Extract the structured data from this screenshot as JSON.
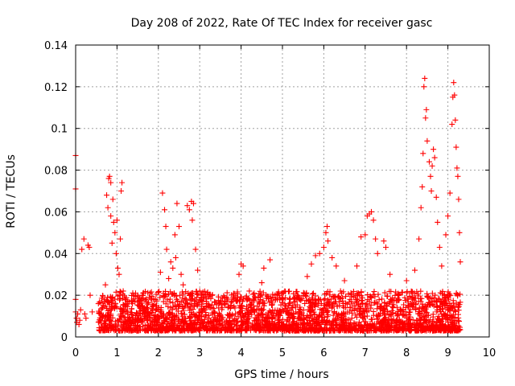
{
  "chart_data": {
    "type": "scatter",
    "title": "Day 208 of 2022, Rate Of TEC Index for receiver gasc",
    "xlabel": "GPS time / hours",
    "ylabel": "ROTI / TECUs",
    "xlim": [
      0,
      10
    ],
    "ylim": [
      0,
      0.14
    ],
    "x_ticks": [
      0,
      1,
      2,
      3,
      4,
      5,
      6,
      7,
      8,
      9,
      10
    ],
    "x_tick_labels": [
      "0",
      "1",
      "2",
      "3",
      "4",
      "5",
      "6",
      "7",
      "8",
      "9",
      "10"
    ],
    "y_ticks": [
      0,
      0.02,
      0.04,
      0.06,
      0.08,
      0.1,
      0.12,
      0.14
    ],
    "y_tick_labels": [
      "0",
      "0.02",
      "0.04",
      "0.06",
      "0.08",
      "0.1",
      "0.12",
      "0.14"
    ],
    "grid": true,
    "marker": "+",
    "series": [
      {
        "name": "ROTI",
        "color": "#ff0000",
        "points": [
          [
            0.0,
            0.087
          ],
          [
            0.0,
            0.071
          ],
          [
            0.0,
            0.018
          ],
          [
            0.0,
            0.012
          ],
          [
            0.02,
            0.009
          ],
          [
            0.03,
            0.007
          ],
          [
            0.05,
            0.011
          ],
          [
            0.08,
            0.006
          ],
          [
            0.1,
            0.008
          ],
          [
            0.12,
            0.013
          ],
          [
            0.15,
            0.042
          ],
          [
            0.2,
            0.047
          ],
          [
            0.22,
            0.011
          ],
          [
            0.25,
            0.009
          ],
          [
            0.3,
            0.044
          ],
          [
            0.33,
            0.043
          ],
          [
            0.35,
            0.02
          ],
          [
            0.4,
            0.012
          ],
          [
            0.55,
            0.016
          ],
          [
            0.6,
            0.011
          ],
          [
            0.65,
            0.014
          ],
          [
            0.7,
            0.018
          ],
          [
            0.72,
            0.025
          ],
          [
            0.75,
            0.068
          ],
          [
            0.78,
            0.062
          ],
          [
            0.8,
            0.076
          ],
          [
            0.82,
            0.077
          ],
          [
            0.85,
            0.074
          ],
          [
            0.85,
            0.058
          ],
          [
            0.88,
            0.045
          ],
          [
            0.9,
            0.066
          ],
          [
            0.92,
            0.055
          ],
          [
            0.95,
            0.05
          ],
          [
            0.98,
            0.04
          ],
          [
            1.0,
            0.056
          ],
          [
            1.02,
            0.033
          ],
          [
            1.05,
            0.03
          ],
          [
            1.08,
            0.047
          ],
          [
            1.1,
            0.07
          ],
          [
            1.12,
            0.074
          ],
          [
            1.15,
            0.022
          ],
          [
            1.2,
            0.018
          ],
          [
            1.5,
            0.02
          ],
          [
            1.8,
            0.021
          ],
          [
            2.05,
            0.031
          ],
          [
            2.1,
            0.069
          ],
          [
            2.15,
            0.061
          ],
          [
            2.18,
            0.053
          ],
          [
            2.2,
            0.042
          ],
          [
            2.25,
            0.028
          ],
          [
            2.3,
            0.036
          ],
          [
            2.35,
            0.033
          ],
          [
            2.4,
            0.049
          ],
          [
            2.42,
            0.038
          ],
          [
            2.45,
            0.064
          ],
          [
            2.5,
            0.053
          ],
          [
            2.55,
            0.03
          ],
          [
            2.6,
            0.025
          ],
          [
            2.7,
            0.063
          ],
          [
            2.75,
            0.061
          ],
          [
            2.8,
            0.065
          ],
          [
            2.85,
            0.064
          ],
          [
            2.82,
            0.056
          ],
          [
            2.9,
            0.042
          ],
          [
            2.95,
            0.032
          ],
          [
            3.0,
            0.022
          ],
          [
            3.3,
            0.02
          ],
          [
            3.6,
            0.019
          ],
          [
            3.95,
            0.03
          ],
          [
            4.0,
            0.035
          ],
          [
            4.05,
            0.034
          ],
          [
            4.2,
            0.022
          ],
          [
            4.5,
            0.026
          ],
          [
            4.55,
            0.033
          ],
          [
            4.7,
            0.037
          ],
          [
            5.0,
            0.021
          ],
          [
            5.3,
            0.019
          ],
          [
            5.6,
            0.029
          ],
          [
            5.7,
            0.035
          ],
          [
            5.8,
            0.039
          ],
          [
            5.9,
            0.04
          ],
          [
            6.0,
            0.043
          ],
          [
            6.05,
            0.05
          ],
          [
            6.08,
            0.053
          ],
          [
            6.1,
            0.046
          ],
          [
            6.2,
            0.038
          ],
          [
            6.3,
            0.034
          ],
          [
            6.5,
            0.027
          ],
          [
            6.8,
            0.034
          ],
          [
            6.9,
            0.048
          ],
          [
            7.0,
            0.049
          ],
          [
            7.05,
            0.058
          ],
          [
            7.1,
            0.059
          ],
          [
            7.15,
            0.06
          ],
          [
            7.2,
            0.056
          ],
          [
            7.25,
            0.047
          ],
          [
            7.3,
            0.04
          ],
          [
            7.45,
            0.046
          ],
          [
            7.5,
            0.043
          ],
          [
            7.6,
            0.03
          ],
          [
            8.0,
            0.027
          ],
          [
            8.2,
            0.032
          ],
          [
            8.3,
            0.047
          ],
          [
            8.35,
            0.062
          ],
          [
            8.38,
            0.072
          ],
          [
            8.4,
            0.088
          ],
          [
            8.42,
            0.12
          ],
          [
            8.44,
            0.124
          ],
          [
            8.46,
            0.105
          ],
          [
            8.48,
            0.109
          ],
          [
            8.5,
            0.094
          ],
          [
            8.55,
            0.084
          ],
          [
            8.58,
            0.077
          ],
          [
            8.6,
            0.07
          ],
          [
            8.62,
            0.082
          ],
          [
            8.65,
            0.09
          ],
          [
            8.68,
            0.086
          ],
          [
            8.72,
            0.067
          ],
          [
            8.75,
            0.055
          ],
          [
            8.8,
            0.043
          ],
          [
            8.85,
            0.034
          ],
          [
            8.95,
            0.049
          ],
          [
            9.0,
            0.058
          ],
          [
            9.05,
            0.069
          ],
          [
            9.1,
            0.102
          ],
          [
            9.12,
            0.115
          ],
          [
            9.14,
            0.122
          ],
          [
            9.16,
            0.116
          ],
          [
            9.18,
            0.104
          ],
          [
            9.2,
            0.091
          ],
          [
            9.22,
            0.081
          ],
          [
            9.24,
            0.077
          ],
          [
            9.26,
            0.066
          ],
          [
            9.28,
            0.05
          ],
          [
            9.3,
            0.036
          ]
        ],
        "baseline_band": {
          "x_range": [
            0.55,
            9.3
          ],
          "typical_range": [
            0.003,
            0.022
          ],
          "note": "dense cluster of ROTI values near the bottom of the plot"
        }
      }
    ]
  }
}
